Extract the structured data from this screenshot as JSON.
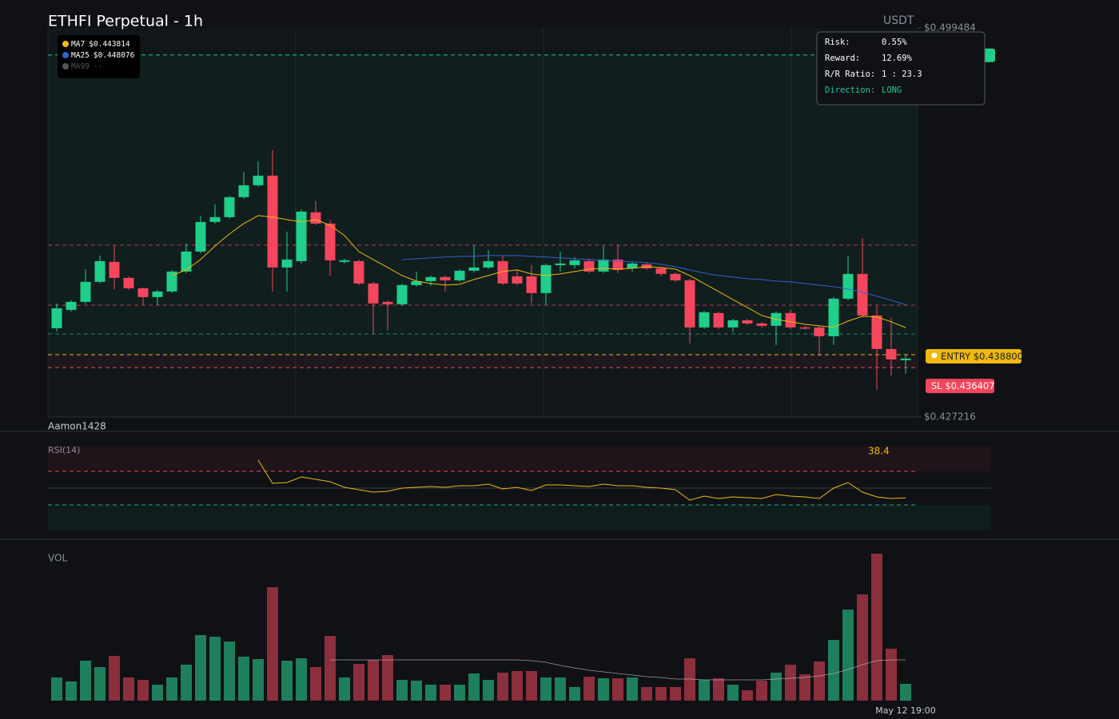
{
  "chart_data": [
    {
      "type": "candlestick",
      "title": "ETHFI Perpetual - 1h",
      "currency": "USDT",
      "watermark": "Aamon1428",
      "ylim": [
        0.427216,
        0.499484
      ],
      "yticks": [
        {
          "value": 0.427216,
          "label": "$0.427216"
        },
        {
          "value": 0.499484,
          "label": "$0.499484"
        }
      ],
      "up_color": "#1fcf8b",
      "down_color": "#f6465d",
      "categories": [
        null,
        null,
        null,
        null,
        null,
        null,
        null,
        null,
        null,
        null,
        null,
        null,
        null,
        null,
        null,
        null,
        null,
        null,
        null,
        null,
        null,
        null,
        null,
        null,
        null,
        null,
        null,
        null,
        null,
        null,
        null,
        null,
        null,
        null,
        null,
        null,
        null,
        null,
        null,
        null,
        null,
        null,
        null,
        null,
        null,
        null,
        null,
        null,
        null,
        null,
        null,
        null,
        null,
        null,
        null,
        null,
        null,
        null,
        null,
        "May 12 19:00"
      ],
      "open": [
        0.44371,
        0.44712,
        0.44861,
        0.45232,
        0.45603,
        0.45306,
        0.45113,
        0.4495,
        0.45053,
        0.45424,
        0.45795,
        0.46345,
        0.46434,
        0.46805,
        0.47027,
        0.47205,
        0.45499,
        0.45617,
        0.46523,
        0.46315,
        0.45603,
        0.45617,
        0.45202,
        0.44861,
        0.44816,
        0.45172,
        0.45246,
        0.45321,
        0.45261,
        0.45439,
        0.45499,
        0.45617,
        0.45335,
        0.45335,
        0.45024,
        0.45543,
        0.45543,
        0.45617,
        0.45424,
        0.45647,
        0.45484,
        0.45558,
        0.45484,
        0.4538,
        0.45261,
        0.44386,
        0.44653,
        0.44386,
        0.44519,
        0.4446,
        0.44415,
        0.44653,
        0.44386,
        0.44386,
        0.44222,
        0.4492,
        0.4538,
        0.44608,
        0.43985,
        0.43777
      ],
      "high": [
        0.44831,
        0.4489,
        0.45469,
        0.45721,
        0.45914,
        0.45335,
        0.45128,
        0.45083,
        0.45454,
        0.45944,
        0.46463,
        0.46671,
        0.46834,
        0.47279,
        0.47472,
        0.4768,
        0.46166,
        0.46582,
        0.4673,
        0.46374,
        0.45662,
        0.45647,
        0.45232,
        0.4489,
        0.45202,
        0.45424,
        0.4535,
        0.4535,
        0.45469,
        0.45914,
        0.45825,
        0.45721,
        0.45469,
        0.45543,
        0.45573,
        0.45795,
        0.45692,
        0.45662,
        0.45899,
        0.45929,
        0.45617,
        0.45588,
        0.45513,
        0.4541,
        0.45291,
        0.44697,
        0.44682,
        0.44549,
        0.44549,
        0.4449,
        0.44682,
        0.44712,
        0.44415,
        0.44415,
        0.4495,
        0.45721,
        0.46048,
        0.44786,
        0.44564,
        0.43866
      ],
      "low": [
        0.44311,
        0.44682,
        0.44831,
        0.45202,
        0.45098,
        0.45083,
        0.44801,
        0.44801,
        0.45024,
        0.45395,
        0.45766,
        0.46315,
        0.46404,
        0.46775,
        0.46997,
        0.45053,
        0.45053,
        0.45573,
        0.46285,
        0.4535,
        0.45573,
        0.45172,
        0.44267,
        0.44326,
        0.44786,
        0.45142,
        0.45157,
        0.45053,
        0.45232,
        0.4541,
        0.45469,
        0.45172,
        0.45172,
        0.44831,
        0.44801,
        0.45424,
        0.45484,
        0.45395,
        0.45395,
        0.45395,
        0.45424,
        0.45454,
        0.45335,
        0.45232,
        0.44089,
        0.44356,
        0.44356,
        0.44297,
        0.4443,
        0.44386,
        0.44059,
        0.44356,
        0.44341,
        0.43851,
        0.44059,
        0.4489,
        0.44579,
        0.43228,
        0.43495,
        0.43525
      ],
      "close": [
        0.44742,
        0.44861,
        0.45232,
        0.45617,
        0.45306,
        0.45113,
        0.4495,
        0.45053,
        0.45424,
        0.45795,
        0.46345,
        0.46434,
        0.46805,
        0.47027,
        0.47205,
        0.45499,
        0.45647,
        0.46537,
        0.46315,
        0.45632,
        0.45632,
        0.45202,
        0.44831,
        0.44816,
        0.45172,
        0.45246,
        0.45321,
        0.45261,
        0.45439,
        0.45499,
        0.45617,
        0.45202,
        0.45202,
        0.45024,
        0.45543,
        0.45573,
        0.45632,
        0.45424,
        0.45647,
        0.45454,
        0.45573,
        0.45484,
        0.4538,
        0.45261,
        0.44386,
        0.44668,
        0.44386,
        0.44519,
        0.4446,
        0.44415,
        0.44653,
        0.44386,
        0.44371,
        0.44222,
        0.4492,
        0.4538,
        0.44608,
        0.43985,
        0.43792,
        0.43807
      ],
      "series": [
        {
          "name": "MA7",
          "legend_label": "$0.443814",
          "color": "#f0b90b",
          "values": [
            null,
            null,
            null,
            null,
            null,
            null,
            null,
            null,
            0.4535,
            0.45454,
            0.45647,
            0.45899,
            0.46122,
            0.46315,
            0.46463,
            0.46434,
            0.46389,
            0.46345,
            0.46389,
            0.46285,
            0.46092,
            0.45795,
            0.45647,
            0.45499,
            0.4535,
            0.45246,
            0.45202,
            0.45172,
            0.45187,
            0.45276,
            0.4535,
            0.45424,
            0.45454,
            0.4538,
            0.4535,
            0.4538,
            0.45424,
            0.45469,
            0.45484,
            0.45469,
            0.45484,
            0.45513,
            0.45499,
            0.45469,
            0.4535,
            0.45202,
            0.45053,
            0.44905,
            0.44757,
            0.44608,
            0.44534,
            0.4449,
            0.44445,
            0.44415,
            0.44386,
            0.44504,
            0.44593,
            0.44579,
            0.4449,
            0.443814
          ]
        },
        {
          "name": "MA25",
          "legend_label": "$0.448076",
          "color": "#3461d1",
          "values": [
            null,
            null,
            null,
            null,
            null,
            null,
            null,
            null,
            null,
            null,
            null,
            null,
            null,
            null,
            null,
            null,
            null,
            null,
            null,
            null,
            null,
            null,
            null,
            null,
            0.45647,
            0.45662,
            0.45677,
            0.45692,
            0.45706,
            0.45706,
            0.45721,
            0.45721,
            0.45721,
            0.45706,
            0.45692,
            0.45677,
            0.45662,
            0.45647,
            0.45632,
            0.45617,
            0.45603,
            0.45588,
            0.45558,
            0.45513,
            0.45454,
            0.45395,
            0.4535,
            0.45321,
            0.45291,
            0.45276,
            0.45246,
            0.45232,
            0.45202,
            0.45172,
            0.45142,
            0.45098,
            0.45039,
            0.44964,
            0.4489,
            0.448076
          ]
        },
        {
          "name": "MA99",
          "legend_label": "--",
          "color": "#555555",
          "values": [
            null,
            null,
            null,
            null,
            null,
            null,
            null,
            null,
            null,
            null,
            null,
            null,
            null,
            null,
            null,
            null,
            null,
            null,
            null,
            null,
            null,
            null,
            null,
            null,
            null,
            null,
            null,
            null,
            null,
            null,
            null,
            null,
            null,
            null,
            null,
            null,
            null,
            null,
            null,
            null,
            null,
            null,
            null,
            null,
            null,
            null,
            null,
            null,
            null,
            null,
            null,
            null,
            null,
            null,
            null,
            null,
            null,
            null,
            null,
            null
          ]
        }
      ],
      "reference_lines": [
        {
          "value": 0.45914,
          "color": "#f6465d"
        },
        {
          "value": 0.44799,
          "color": "#f6465d"
        },
        {
          "value": 0.44265,
          "color": "#26a69a"
        }
      ],
      "take_profit": {
        "value": 0.49448,
        "color": "#1fcf8b"
      },
      "entry": {
        "value": 0.4388,
        "label": "ENTRY $0.438800",
        "color": "#f0b90b"
      },
      "stop_loss": {
        "value": 0.436407,
        "label": "SL $0.436407",
        "color": "#f6465d"
      },
      "risk_panel": {
        "rows": [
          {
            "label": "Risk:",
            "value": "0.55%"
          },
          {
            "label": "Reward:",
            "value": "12.69%"
          },
          {
            "label": "R/R Ratio:",
            "value": "1 : 23.3"
          },
          {
            "label": "Direction:",
            "value": "LONG"
          }
        ]
      }
    },
    {
      "type": "line",
      "title": "RSI(14)",
      "ylim": [
        0,
        100
      ],
      "levels": [
        {
          "value": 70,
          "color": "#f6465d"
        },
        {
          "value": 50,
          "color": "#3a3f47"
        },
        {
          "value": 30,
          "color": "#26a69a"
        }
      ],
      "series": [
        {
          "color": "#f0b90b",
          "values": [
            null,
            null,
            null,
            null,
            null,
            null,
            null,
            null,
            null,
            null,
            null,
            null,
            null,
            null,
            83.3,
            55.7,
            56.7,
            63.3,
            60.5,
            57.6,
            51,
            48.1,
            45.2,
            46.2,
            50,
            51,
            51.9,
            51,
            52.9,
            52.9,
            54.8,
            49,
            51,
            47.1,
            53.8,
            53.8,
            52.9,
            51.9,
            54.8,
            52.9,
            52.9,
            51,
            50,
            48.1,
            35.7,
            40.5,
            37.6,
            39.5,
            38.6,
            37.6,
            42.4,
            40.5,
            39.5,
            37.6,
            50,
            56.7,
            45.2,
            39.5,
            37.6,
            38.4
          ]
        }
      ]
    },
    {
      "type": "bar",
      "title": "VOL",
      "ylim": [
        0,
        190
      ],
      "up_color": "#1e7f5c",
      "down_color": "#8c2f3d",
      "values": [
        29,
        24,
        50,
        42,
        56,
        29,
        26,
        20,
        29,
        45,
        82,
        80,
        74,
        55,
        52,
        142,
        50,
        53,
        42,
        81,
        29,
        46,
        51,
        57,
        26,
        25,
        20,
        20,
        20,
        34,
        26,
        35,
        37,
        37,
        29,
        29,
        17,
        30,
        28,
        28,
        29,
        17,
        17,
        17,
        53,
        26,
        28,
        20,
        13,
        25,
        35,
        45,
        33,
        49,
        76,
        114,
        133,
        184,
        65,
        21
      ],
      "average": {
        "color": "#bbbbbb",
        "values": [
          null,
          null,
          null,
          null,
          null,
          null,
          null,
          null,
          null,
          null,
          null,
          null,
          null,
          null,
          null,
          null,
          null,
          null,
          null,
          51,
          51,
          51,
          51,
          51,
          51,
          51,
          51,
          51,
          51,
          51,
          51,
          51,
          51,
          50,
          48,
          44,
          41,
          38,
          36,
          34,
          32,
          30,
          29,
          27,
          27,
          26,
          26,
          26,
          26,
          26,
          27,
          28,
          29,
          31,
          34,
          39,
          45,
          50,
          51,
          51
        ]
      }
    }
  ]
}
